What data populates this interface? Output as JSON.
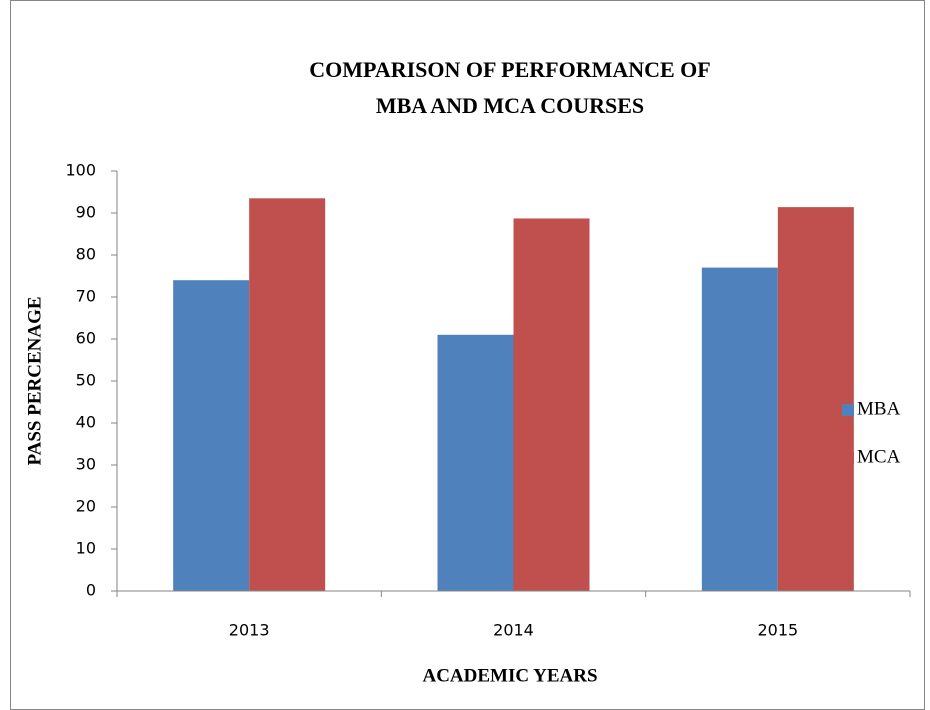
{
  "chart_data": {
    "type": "bar",
    "title": [
      "COMPARISON OF PERFORMANCE  OF",
      "MBA AND MCA COURSES"
    ],
    "x_label": "ACADEMIC YEARS",
    "y_label": "PASS PERCENAGE",
    "categories": [
      "2013",
      "2014",
      "2015"
    ],
    "series": [
      {
        "name": "MBA",
        "color": "#4f81bd",
        "values": [
          74,
          61,
          77
        ]
      },
      {
        "name": "MCA",
        "color": "#c0504d",
        "values": [
          93.5,
          88.7,
          91.4
        ]
      }
    ],
    "ylim": [
      0,
      100
    ],
    "yticks": [
      0,
      10,
      20,
      30,
      40,
      50,
      60,
      70,
      80,
      90,
      100
    ],
    "grid": false,
    "legend": "right"
  }
}
